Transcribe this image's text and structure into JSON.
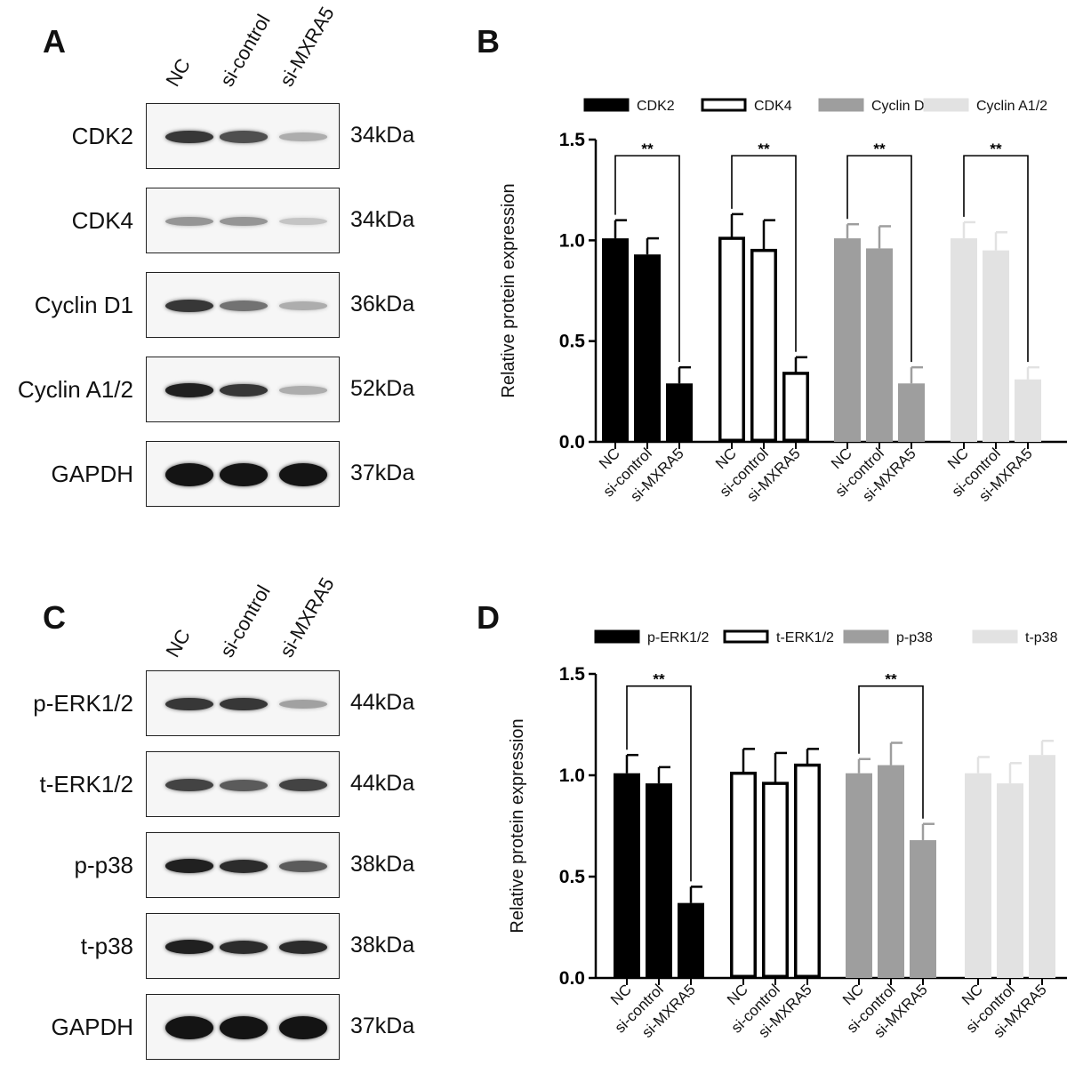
{
  "panels": {
    "A": {
      "letter": "A",
      "lanes": [
        "NC",
        "si-control",
        "si-MXRA5"
      ],
      "blots": [
        {
          "label": "CDK2",
          "kda": "34kDa",
          "intensity": [
            0.85,
            0.75,
            0.35
          ]
        },
        {
          "label": "CDK4",
          "kda": "34kDa",
          "intensity": [
            0.45,
            0.45,
            0.25
          ]
        },
        {
          "label": "Cyclin D1",
          "kda": "36kDa",
          "intensity": [
            0.85,
            0.6,
            0.35
          ]
        },
        {
          "label": "Cyclin A1/2",
          "kda": "52kDa",
          "intensity": [
            0.95,
            0.85,
            0.35
          ]
        },
        {
          "label": "GAPDH",
          "kda": "37kDa",
          "intensity": [
            1.0,
            1.0,
            1.0
          ]
        }
      ]
    },
    "C": {
      "letter": "C",
      "lanes": [
        "NC",
        "si-control",
        "si-MXRA5"
      ],
      "blots": [
        {
          "label": "p-ERK1/2",
          "kda": "44kDa",
          "intensity": [
            0.85,
            0.85,
            0.4
          ]
        },
        {
          "label": "t-ERK1/2",
          "kda": "44kDa",
          "intensity": [
            0.8,
            0.7,
            0.8
          ]
        },
        {
          "label": "p-p38",
          "kda": "38kDa",
          "intensity": [
            0.95,
            0.9,
            0.7
          ]
        },
        {
          "label": "t-p38",
          "kda": "38kDa",
          "intensity": [
            0.95,
            0.9,
            0.9
          ]
        },
        {
          "label": "GAPDH",
          "kda": "37kDa",
          "intensity": [
            1.0,
            1.0,
            1.0
          ]
        }
      ]
    }
  },
  "chart_data": [
    {
      "panel": "B",
      "type": "bar",
      "ylabel": "Relative protein expression",
      "ylim": [
        0,
        1.5
      ],
      "yticks": [
        "0.0",
        "0.5",
        "1.0",
        "1.5"
      ],
      "categories": [
        "NC",
        "si-control",
        "si-MXRA5"
      ],
      "legend_position": "top",
      "significance_label": "**",
      "series": [
        {
          "name": "CDK2",
          "values": [
            1.01,
            0.93,
            0.29
          ],
          "errors": [
            0.09,
            0.08,
            0.08
          ],
          "fill": "#000000",
          "stroke": "#000000",
          "significant": true
        },
        {
          "name": "CDK4",
          "values": [
            1.01,
            0.95,
            0.34
          ],
          "errors": [
            0.12,
            0.15,
            0.08
          ],
          "fill": "#ffffff",
          "stroke": "#000000",
          "significant": true
        },
        {
          "name": "Cyclin D1",
          "values": [
            1.01,
            0.96,
            0.29
          ],
          "errors": [
            0.07,
            0.11,
            0.08
          ],
          "fill": "#9e9e9e",
          "stroke": "#9e9e9e",
          "significant": true
        },
        {
          "name": "Cyclin A1/2",
          "values": [
            1.01,
            0.95,
            0.31
          ],
          "errors": [
            0.08,
            0.09,
            0.06
          ],
          "fill": "#e2e2e2",
          "stroke": "#e2e2e2",
          "significant": true
        }
      ]
    },
    {
      "panel": "D",
      "type": "bar",
      "ylabel": "Relative protein expression",
      "ylim": [
        0,
        1.5
      ],
      "yticks": [
        "0.0",
        "0.5",
        "1.0",
        "1.5"
      ],
      "categories": [
        "NC",
        "si-control",
        "si-MXRA5"
      ],
      "legend_position": "top",
      "significance_label": "**",
      "series": [
        {
          "name": "p-ERK1/2",
          "values": [
            1.01,
            0.96,
            0.37
          ],
          "errors": [
            0.09,
            0.08,
            0.08
          ],
          "fill": "#000000",
          "stroke": "#000000",
          "significant": true
        },
        {
          "name": "t-ERK1/2",
          "values": [
            1.01,
            0.96,
            1.05
          ],
          "errors": [
            0.12,
            0.15,
            0.08
          ],
          "fill": "#ffffff",
          "stroke": "#000000",
          "significant": false
        },
        {
          "name": "p-p38",
          "values": [
            1.01,
            1.05,
            0.68
          ],
          "errors": [
            0.07,
            0.11,
            0.08
          ],
          "fill": "#9e9e9e",
          "stroke": "#9e9e9e",
          "significant": true
        },
        {
          "name": "t-p38",
          "values": [
            1.01,
            0.96,
            1.1
          ],
          "errors": [
            0.08,
            0.1,
            0.07
          ],
          "fill": "#e2e2e2",
          "stroke": "#e2e2e2",
          "significant": false
        }
      ]
    }
  ]
}
